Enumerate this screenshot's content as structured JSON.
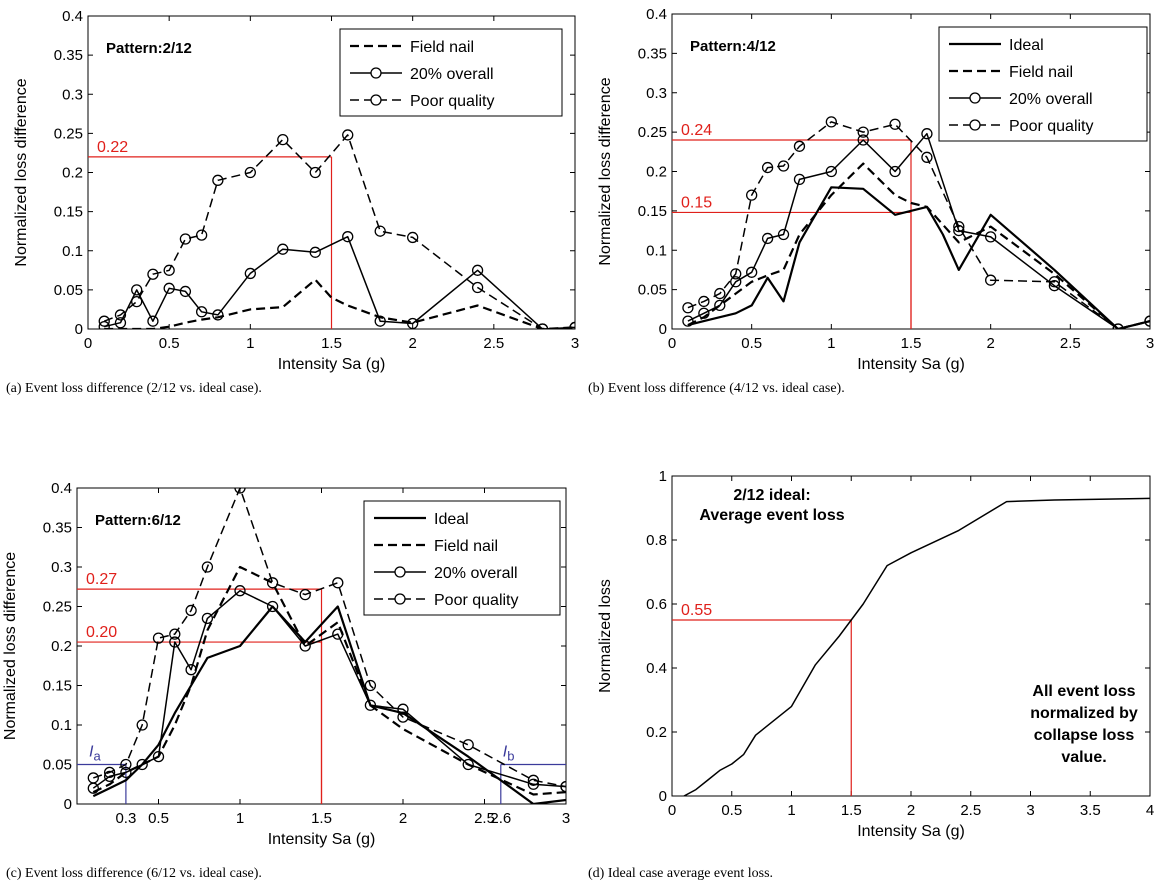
{
  "chart_data": [
    {
      "type": "line",
      "panel": "a",
      "caption": "(a) Event loss difference (2/12 vs. ideal case).",
      "pattern_label": "Pattern:2/12",
      "xlabel": "Intensity Sa (g)",
      "ylabel": "Normalized loss difference",
      "xlim": [
        0,
        3
      ],
      "ylim": [
        0,
        0.4
      ],
      "xticks": [
        0,
        0.5,
        1,
        1.5,
        2,
        2.5,
        3
      ],
      "xtick_labels": [
        "0",
        "0.5",
        "1",
        "1.5",
        "2",
        "2.5",
        "3"
      ],
      "yticks": [
        0,
        0.05,
        0.1,
        0.15,
        0.2,
        0.25,
        0.3,
        0.35,
        0.4
      ],
      "ytick_labels": [
        "0",
        "0.05",
        "0.1",
        "0.15",
        "0.2",
        "0.25",
        "0.3",
        "0.35",
        "0.4"
      ],
      "legend_position": "top-right",
      "series": [
        {
          "name": "Field nail",
          "style": "dashed",
          "marker": "none",
          "x": [
            0.1,
            0.2,
            0.3,
            0.4,
            0.5,
            0.6,
            0.7,
            0.8,
            1.0,
            1.2,
            1.4,
            1.5,
            1.6,
            1.8,
            2.0,
            2.4,
            2.8,
            3.0
          ],
          "y": [
            0,
            0,
            0,
            0,
            0.003,
            0.008,
            0.012,
            0.015,
            0.025,
            0.028,
            0.063,
            0.04,
            0.03,
            0.015,
            0.008,
            0.03,
            0,
            0.002
          ]
        },
        {
          "name": "20% overall",
          "style": "solid",
          "marker": "circle",
          "x": [
            0.1,
            0.2,
            0.3,
            0.4,
            0.5,
            0.6,
            0.7,
            0.8,
            1.0,
            1.2,
            1.4,
            1.6,
            1.8,
            2.0,
            2.4,
            2.8,
            3.0
          ],
          "y": [
            0.003,
            0.008,
            0.05,
            0.01,
            0.052,
            0.048,
            0.022,
            0.018,
            0.071,
            0.102,
            0.098,
            0.118,
            0.01,
            0.007,
            0.075,
            0,
            0.002
          ]
        },
        {
          "name": "Poor quality",
          "style": "dashed",
          "marker": "circle",
          "x": [
            0.1,
            0.2,
            0.3,
            0.4,
            0.5,
            0.6,
            0.7,
            0.8,
            1.0,
            1.2,
            1.4,
            1.6,
            1.8,
            2.0,
            2.4,
            2.8,
            3.0
          ],
          "y": [
            0.01,
            0.018,
            0.035,
            0.07,
            0.075,
            0.115,
            0.12,
            0.19,
            0.2,
            0.242,
            0.2,
            0.248,
            0.125,
            0.117,
            0.053,
            0,
            0.002
          ]
        }
      ],
      "annotations": [
        {
          "label": "0.22",
          "x": 1.5,
          "y": 0.22,
          "color": "#e0201b",
          "side": "left"
        }
      ]
    },
    {
      "type": "line",
      "panel": "b",
      "caption": "(b) Event loss difference (4/12 vs. ideal case).",
      "pattern_label": "Pattern:4/12",
      "xlabel": "Intensity Sa (g)",
      "ylabel": "Normalized loss difference",
      "xlim": [
        0,
        3
      ],
      "ylim": [
        0,
        0.4
      ],
      "xticks": [
        0,
        0.5,
        1,
        1.5,
        2,
        2.5,
        3
      ],
      "xtick_labels": [
        "0",
        "0.5",
        "1",
        "1.5",
        "2",
        "2.5",
        "3"
      ],
      "yticks": [
        0,
        0.05,
        0.1,
        0.15,
        0.2,
        0.25,
        0.3,
        0.35,
        0.4
      ],
      "ytick_labels": [
        "0",
        "0.05",
        "0.1",
        "0.15",
        "0.2",
        "0.25",
        "0.3",
        "0.35",
        "0.4"
      ],
      "legend_position": "top-right",
      "series": [
        {
          "name": "Ideal",
          "style": "solid",
          "marker": "none",
          "x": [
            0.1,
            0.2,
            0.3,
            0.4,
            0.5,
            0.6,
            0.7,
            0.8,
            1.0,
            1.2,
            1.4,
            1.6,
            1.7,
            1.8,
            2.0,
            2.4,
            2.8,
            3.0
          ],
          "y": [
            0.005,
            0.01,
            0.015,
            0.02,
            0.03,
            0.065,
            0.035,
            0.11,
            0.18,
            0.178,
            0.145,
            0.155,
            0.12,
            0.075,
            0.145,
            0.075,
            0,
            0.01
          ]
        },
        {
          "name": "Field nail",
          "style": "dashed",
          "marker": "none",
          "x": [
            0.1,
            0.2,
            0.3,
            0.4,
            0.5,
            0.6,
            0.7,
            0.8,
            1.0,
            1.2,
            1.4,
            1.5,
            1.6,
            1.8,
            2.0,
            2.4,
            2.8,
            3.0
          ],
          "y": [
            0.005,
            0.015,
            0.03,
            0.045,
            0.06,
            0.068,
            0.075,
            0.12,
            0.17,
            0.21,
            0.17,
            0.16,
            0.155,
            0.11,
            0.13,
            0.07,
            0,
            0.01
          ]
        },
        {
          "name": "20% overall",
          "style": "solid",
          "marker": "circle",
          "x": [
            0.1,
            0.2,
            0.3,
            0.4,
            0.5,
            0.6,
            0.7,
            0.8,
            1.0,
            1.2,
            1.4,
            1.6,
            1.8,
            2.0,
            2.4,
            2.8,
            3.0
          ],
          "y": [
            0.01,
            0.02,
            0.03,
            0.06,
            0.072,
            0.115,
            0.12,
            0.19,
            0.2,
            0.24,
            0.2,
            0.248,
            0.125,
            0.117,
            0.055,
            0,
            0.01
          ]
        },
        {
          "name": "Poor quality",
          "style": "dashed",
          "marker": "circle",
          "x": [
            0.1,
            0.2,
            0.3,
            0.4,
            0.5,
            0.6,
            0.7,
            0.8,
            1.0,
            1.2,
            1.4,
            1.6,
            1.8,
            2.0,
            2.4,
            2.8,
            3.0
          ],
          "y": [
            0.027,
            0.035,
            0.045,
            0.07,
            0.17,
            0.205,
            0.207,
            0.232,
            0.263,
            0.25,
            0.26,
            0.218,
            0.13,
            0.062,
            0.06,
            0,
            0.01
          ]
        }
      ],
      "annotations": [
        {
          "label": "0.24",
          "x": 1.5,
          "y": 0.24,
          "color": "#e0201b",
          "side": "left"
        },
        {
          "label": "0.15",
          "x": 1.5,
          "y": 0.148,
          "color": "#e0201b",
          "side": "left"
        }
      ]
    },
    {
      "type": "line",
      "panel": "c",
      "caption": "(c) Event loss difference (6/12 vs. ideal case).",
      "pattern_label": "Pattern:6/12",
      "xlabel": "Intensity Sa (g)",
      "ylabel": "Normalized loss difference",
      "xlim": [
        0,
        3
      ],
      "ylim": [
        0,
        0.4
      ],
      "xticks": [
        0.5,
        1,
        1.5,
        2,
        2.5,
        3
      ],
      "xtick_labels": [
        "0.5",
        "1",
        "1.5",
        "2",
        "2.5",
        "3"
      ],
      "yticks": [
        0,
        0.05,
        0.1,
        0.15,
        0.2,
        0.25,
        0.3,
        0.35,
        0.4
      ],
      "ytick_labels": [
        "0",
        "0.05",
        "0.1",
        "0.15",
        "0.2",
        "0.25",
        "0.3",
        "0.35",
        "0.4"
      ],
      "legend_position": "top-right",
      "series": [
        {
          "name": "Ideal",
          "style": "solid",
          "marker": "none",
          "x": [
            0.1,
            0.2,
            0.3,
            0.4,
            0.5,
            0.6,
            0.7,
            0.8,
            1.0,
            1.2,
            1.4,
            1.6,
            1.8,
            2.0,
            2.4,
            2.8,
            3.0
          ],
          "y": [
            0.01,
            0.02,
            0.03,
            0.05,
            0.075,
            0.115,
            0.15,
            0.185,
            0.2,
            0.25,
            0.205,
            0.25,
            0.125,
            0.115,
            0.06,
            0,
            0.005
          ]
        },
        {
          "name": "Field nail",
          "style": "dashed",
          "marker": "none",
          "x": [
            0.1,
            0.2,
            0.3,
            0.4,
            0.5,
            0.6,
            0.7,
            0.8,
            1.0,
            1.2,
            1.4,
            1.6,
            1.8,
            2.0,
            2.4,
            2.8,
            3.0
          ],
          "y": [
            0.015,
            0.025,
            0.04,
            0.05,
            0.06,
            0.1,
            0.15,
            0.22,
            0.3,
            0.28,
            0.2,
            0.23,
            0.125,
            0.095,
            0.05,
            0.012,
            0.015
          ]
        },
        {
          "name": "20% overall",
          "style": "solid",
          "marker": "circle",
          "x": [
            0.1,
            0.2,
            0.3,
            0.4,
            0.5,
            0.6,
            0.7,
            0.8,
            1.0,
            1.2,
            1.4,
            1.6,
            1.8,
            2.0,
            2.4,
            2.8,
            3.0
          ],
          "y": [
            0.02,
            0.035,
            0.04,
            0.05,
            0.06,
            0.205,
            0.17,
            0.235,
            0.27,
            0.25,
            0.2,
            0.215,
            0.125,
            0.12,
            0.05,
            0.025,
            0.022
          ]
        },
        {
          "name": "Poor quality",
          "style": "dashed",
          "marker": "circle",
          "x": [
            0.1,
            0.2,
            0.3,
            0.4,
            0.5,
            0.6,
            0.7,
            0.8,
            1.0,
            1.2,
            1.4,
            1.6,
            1.8,
            2.0,
            2.4,
            2.8,
            3.0
          ],
          "y": [
            0.033,
            0.04,
            0.05,
            0.1,
            0.21,
            0.215,
            0.245,
            0.3,
            0.4,
            0.28,
            0.265,
            0.28,
            0.15,
            0.11,
            0.075,
            0.03,
            0.022
          ]
        }
      ],
      "annotations": [
        {
          "label": "0.27",
          "x": 1.5,
          "y": 0.272,
          "color": "#e0201b",
          "side": "left"
        },
        {
          "label": "0.20",
          "x": 1.5,
          "y": 0.205,
          "color": "#e0201b",
          "side": "left"
        }
      ],
      "blue_markers": [
        {
          "symbol": "I",
          "sub": "a",
          "x": 0.3,
          "y": 0.05,
          "value_label": "0.3",
          "side": "left"
        },
        {
          "symbol": "I",
          "sub": "b",
          "x": 2.6,
          "y": 0.05,
          "value_label": "2.6",
          "side": "right"
        }
      ]
    },
    {
      "type": "line",
      "panel": "d",
      "caption": "(d) Ideal case average event loss.",
      "title_lines": [
        "2/12 ideal:",
        "Average event loss"
      ],
      "note_lines": [
        "All event loss",
        "normalized by",
        "collapse loss",
        "value."
      ],
      "xlabel": "Intensity Sa (g)",
      "ylabel": "Normalized loss",
      "xlim": [
        0,
        4
      ],
      "ylim": [
        0,
        1
      ],
      "xticks": [
        0,
        0.5,
        1,
        1.5,
        2,
        2.5,
        3,
        3.5,
        4
      ],
      "xtick_labels": [
        "0",
        "0.5",
        "1",
        "1.5",
        "2",
        "2.5",
        "3",
        "3.5",
        "4"
      ],
      "yticks": [
        0,
        0.2,
        0.4,
        0.6,
        0.8,
        1
      ],
      "ytick_labels": [
        "0",
        "0.2",
        "0.4",
        "0.6",
        "0.8",
        "1"
      ],
      "series": [
        {
          "style": "solid",
          "marker": "none",
          "x": [
            0.1,
            0.2,
            0.3,
            0.4,
            0.5,
            0.6,
            0.7,
            0.8,
            1.0,
            1.2,
            1.4,
            1.6,
            1.8,
            2.0,
            2.4,
            2.8,
            3.2,
            4.0
          ],
          "y": [
            0,
            0.02,
            0.05,
            0.08,
            0.1,
            0.13,
            0.19,
            0.22,
            0.28,
            0.41,
            0.5,
            0.6,
            0.72,
            0.76,
            0.83,
            0.92,
            0.925,
            0.93
          ]
        }
      ],
      "annotations": [
        {
          "label": "0.55",
          "x": 1.5,
          "y": 0.55,
          "color": "#e0201b",
          "side": "left"
        }
      ]
    }
  ]
}
